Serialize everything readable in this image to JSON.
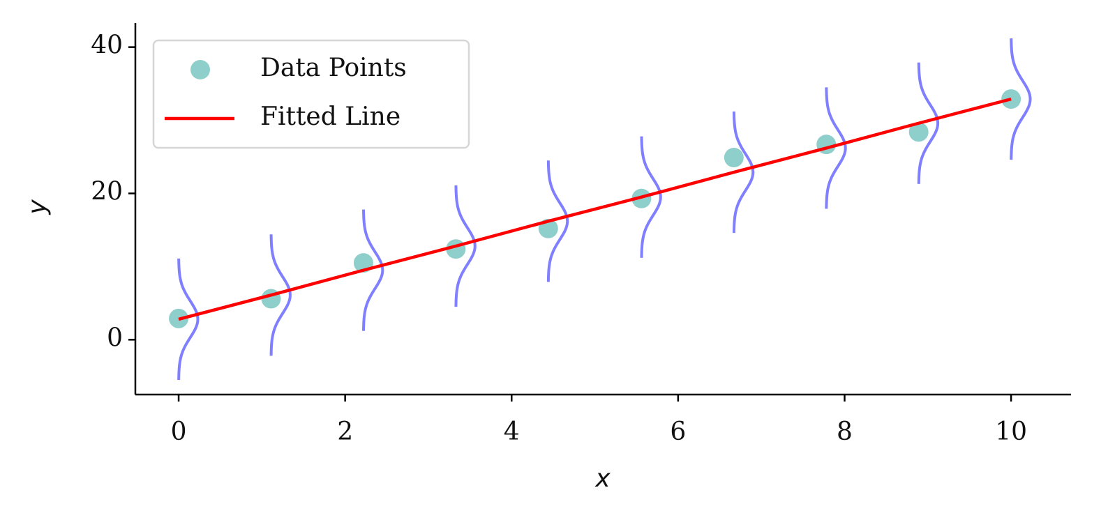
{
  "chart_data": {
    "type": "scatter",
    "xlabel": "x",
    "ylabel": "y",
    "xlim": [
      -0.52,
      10.72
    ],
    "ylim": [
      -7.5,
      43.3
    ],
    "xticks": [
      0,
      2,
      4,
      6,
      8,
      10
    ],
    "yticks": [
      0,
      20,
      40
    ],
    "grid": false,
    "legend": "upper left",
    "series": [
      {
        "name": "Data Points",
        "type": "scatter",
        "color": "#8fcfcb",
        "x": [
          0,
          1.11,
          2.22,
          3.33,
          4.44,
          5.56,
          6.67,
          7.78,
          8.89,
          10
        ],
        "values": [
          2.9,
          5.6,
          10.5,
          12.4,
          15.2,
          19.3,
          24.9,
          26.7,
          28.4,
          32.9
        ]
      },
      {
        "name": "Fitted Line",
        "type": "line",
        "color": "#ff0000",
        "x": [
          0,
          1.11,
          2.22,
          3.33,
          4.44,
          5.56,
          6.67,
          7.78,
          8.89,
          10
        ],
        "values": [
          2.8,
          6.1,
          9.5,
          12.8,
          16.2,
          19.5,
          22.9,
          26.2,
          29.6,
          32.9
        ]
      }
    ],
    "noise_curves": {
      "color": "#0000ff",
      "opacity": 0.5,
      "sigma": 2.5,
      "span": 8.3,
      "width": 0.23
    }
  }
}
